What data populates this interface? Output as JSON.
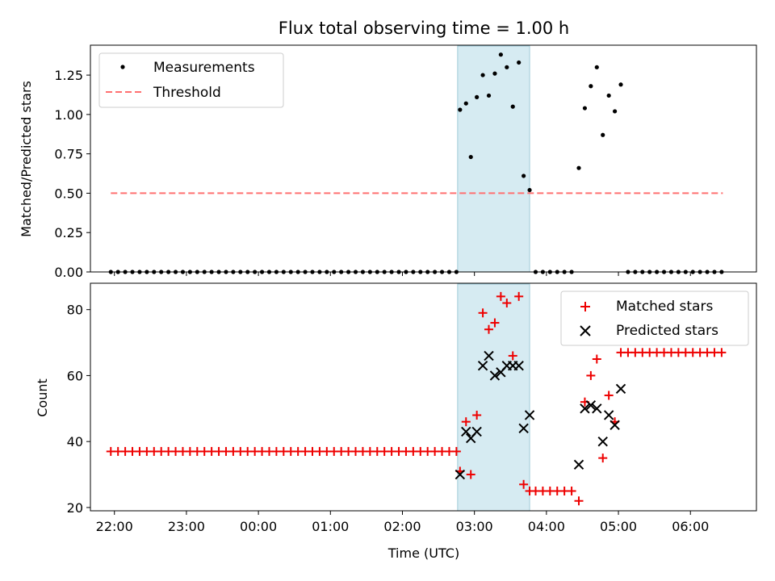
{
  "title": "Flux total observing time = 1.00 h",
  "colors": {
    "measurement": "#000000",
    "threshold": "#ff7070",
    "matched": "#ee0000",
    "predicted": "#000000",
    "highlight": "#add8e6"
  },
  "chart_data": [
    {
      "type": "scatter",
      "ylabel": "Matched/Predicted stars",
      "ylim": [
        0,
        1.44
      ],
      "yticks": [
        0,
        0.25,
        0.5,
        0.75,
        1.0,
        1.25
      ],
      "ytick_labels": [
        "0.00",
        "0.25",
        "0.50",
        "0.75",
        "1.00",
        "1.25"
      ],
      "legend_position": "top-left",
      "highlight_span": [
        "02:46",
        "03:46"
      ],
      "series": [
        {
          "name": "Measurements",
          "marker": "dot",
          "points": [
            [
              "21:57",
              0
            ],
            [
              "22:03",
              0
            ],
            [
              "22:09",
              0
            ],
            [
              "22:15",
              0
            ],
            [
              "22:21",
              0
            ],
            [
              "22:27",
              0
            ],
            [
              "22:33",
              0
            ],
            [
              "22:39",
              0
            ],
            [
              "22:45",
              0
            ],
            [
              "22:51",
              0
            ],
            [
              "22:57",
              0
            ],
            [
              "23:03",
              0
            ],
            [
              "23:09",
              0
            ],
            [
              "23:15",
              0
            ],
            [
              "23:21",
              0
            ],
            [
              "23:27",
              0
            ],
            [
              "23:33",
              0
            ],
            [
              "23:39",
              0
            ],
            [
              "23:45",
              0
            ],
            [
              "23:51",
              0
            ],
            [
              "23:57",
              0
            ],
            [
              "00:03",
              0
            ],
            [
              "00:09",
              0
            ],
            [
              "00:15",
              0
            ],
            [
              "00:21",
              0
            ],
            [
              "00:27",
              0
            ],
            [
              "00:33",
              0
            ],
            [
              "00:39",
              0
            ],
            [
              "00:45",
              0
            ],
            [
              "00:51",
              0
            ],
            [
              "00:57",
              0
            ],
            [
              "01:03",
              0
            ],
            [
              "01:09",
              0
            ],
            [
              "01:15",
              0
            ],
            [
              "01:21",
              0
            ],
            [
              "01:27",
              0
            ],
            [
              "01:33",
              0
            ],
            [
              "01:39",
              0
            ],
            [
              "01:45",
              0
            ],
            [
              "01:51",
              0
            ],
            [
              "01:57",
              0
            ],
            [
              "02:03",
              0
            ],
            [
              "02:09",
              0
            ],
            [
              "02:15",
              0
            ],
            [
              "02:21",
              0
            ],
            [
              "02:27",
              0
            ],
            [
              "02:33",
              0
            ],
            [
              "02:39",
              0
            ],
            [
              "02:45",
              0
            ],
            [
              "02:48",
              1.03
            ],
            [
              "02:53",
              1.07
            ],
            [
              "02:57",
              0.73
            ],
            [
              "03:02",
              1.11
            ],
            [
              "03:07",
              1.25
            ],
            [
              "03:12",
              1.12
            ],
            [
              "03:17",
              1.26
            ],
            [
              "03:22",
              1.38
            ],
            [
              "03:27",
              1.3
            ],
            [
              "03:32",
              1.05
            ],
            [
              "03:37",
              1.33
            ],
            [
              "03:41",
              0.61
            ],
            [
              "03:46",
              0.52
            ],
            [
              "03:51",
              0
            ],
            [
              "03:57",
              0
            ],
            [
              "04:03",
              0
            ],
            [
              "04:09",
              0
            ],
            [
              "04:15",
              0
            ],
            [
              "04:21",
              0
            ],
            [
              "04:27",
              0.66
            ],
            [
              "04:32",
              1.04
            ],
            [
              "04:37",
              1.18
            ],
            [
              "04:42",
              1.3
            ],
            [
              "04:47",
              0.87
            ],
            [
              "04:52",
              1.12
            ],
            [
              "04:57",
              1.02
            ],
            [
              "05:02",
              1.19
            ],
            [
              "05:08",
              0
            ],
            [
              "05:14",
              0
            ],
            [
              "05:20",
              0
            ],
            [
              "05:26",
              0
            ],
            [
              "05:32",
              0
            ],
            [
              "05:38",
              0
            ],
            [
              "05:44",
              0
            ],
            [
              "05:50",
              0
            ],
            [
              "05:56",
              0
            ],
            [
              "06:02",
              0
            ],
            [
              "06:08",
              0
            ],
            [
              "06:14",
              0
            ],
            [
              "06:20",
              0
            ],
            [
              "06:26",
              0
            ]
          ]
        },
        {
          "name": "Threshold",
          "style": "dashed",
          "points": [
            [
              "21:57",
              0.5
            ],
            [
              "06:27",
              0.5
            ]
          ]
        }
      ]
    },
    {
      "type": "scatter",
      "xlabel": "Time (UTC)",
      "ylabel": "Count",
      "ylim": [
        19,
        88
      ],
      "yticks": [
        20,
        40,
        60,
        80
      ],
      "ytick_labels": [
        "20",
        "40",
        "60",
        "80"
      ],
      "x_range": [
        "21:40",
        "06:55"
      ],
      "xticks": [
        "22:00",
        "23:00",
        "00:00",
        "01:00",
        "02:00",
        "03:00",
        "04:00",
        "05:00",
        "06:00"
      ],
      "legend_position": "top-right",
      "highlight_span": [
        "02:46",
        "03:46"
      ],
      "series": [
        {
          "name": "Matched stars",
          "marker": "plus",
          "points": [
            [
              "21:57",
              37
            ],
            [
              "22:03",
              37
            ],
            [
              "22:09",
              37
            ],
            [
              "22:15",
              37
            ],
            [
              "22:21",
              37
            ],
            [
              "22:27",
              37
            ],
            [
              "22:33",
              37
            ],
            [
              "22:39",
              37
            ],
            [
              "22:45",
              37
            ],
            [
              "22:51",
              37
            ],
            [
              "22:57",
              37
            ],
            [
              "23:03",
              37
            ],
            [
              "23:09",
              37
            ],
            [
              "23:15",
              37
            ],
            [
              "23:21",
              37
            ],
            [
              "23:27",
              37
            ],
            [
              "23:33",
              37
            ],
            [
              "23:39",
              37
            ],
            [
              "23:45",
              37
            ],
            [
              "23:51",
              37
            ],
            [
              "23:57",
              37
            ],
            [
              "00:03",
              37
            ],
            [
              "00:09",
              37
            ],
            [
              "00:15",
              37
            ],
            [
              "00:21",
              37
            ],
            [
              "00:27",
              37
            ],
            [
              "00:33",
              37
            ],
            [
              "00:39",
              37
            ],
            [
              "00:45",
              37
            ],
            [
              "00:51",
              37
            ],
            [
              "00:57",
              37
            ],
            [
              "01:03",
              37
            ],
            [
              "01:09",
              37
            ],
            [
              "01:15",
              37
            ],
            [
              "01:21",
              37
            ],
            [
              "01:27",
              37
            ],
            [
              "01:33",
              37
            ],
            [
              "01:39",
              37
            ],
            [
              "01:45",
              37
            ],
            [
              "01:51",
              37
            ],
            [
              "01:57",
              37
            ],
            [
              "02:03",
              37
            ],
            [
              "02:09",
              37
            ],
            [
              "02:15",
              37
            ],
            [
              "02:21",
              37
            ],
            [
              "02:27",
              37
            ],
            [
              "02:33",
              37
            ],
            [
              "02:39",
              37
            ],
            [
              "02:45",
              37
            ],
            [
              "02:48",
              31
            ],
            [
              "02:53",
              46
            ],
            [
              "02:57",
              30
            ],
            [
              "03:02",
              48
            ],
            [
              "03:07",
              79
            ],
            [
              "03:12",
              74
            ],
            [
              "03:17",
              76
            ],
            [
              "03:22",
              84
            ],
            [
              "03:27",
              82
            ],
            [
              "03:32",
              66
            ],
            [
              "03:37",
              84
            ],
            [
              "03:41",
              27
            ],
            [
              "03:46",
              25
            ],
            [
              "03:51",
              25
            ],
            [
              "03:57",
              25
            ],
            [
              "04:03",
              25
            ],
            [
              "04:09",
              25
            ],
            [
              "04:15",
              25
            ],
            [
              "04:21",
              25
            ],
            [
              "04:27",
              22
            ],
            [
              "04:32",
              52
            ],
            [
              "04:37",
              60
            ],
            [
              "04:42",
              65
            ],
            [
              "04:47",
              35
            ],
            [
              "04:52",
              54
            ],
            [
              "04:57",
              46
            ],
            [
              "05:02",
              67
            ],
            [
              "05:08",
              67
            ],
            [
              "05:14",
              67
            ],
            [
              "05:20",
              67
            ],
            [
              "05:26",
              67
            ],
            [
              "05:32",
              67
            ],
            [
              "05:38",
              67
            ],
            [
              "05:44",
              67
            ],
            [
              "05:50",
              67
            ],
            [
              "05:56",
              67
            ],
            [
              "06:02",
              67
            ],
            [
              "06:08",
              67
            ],
            [
              "06:14",
              67
            ],
            [
              "06:20",
              67
            ],
            [
              "06:26",
              67
            ]
          ]
        },
        {
          "name": "Predicted stars",
          "marker": "x",
          "points": [
            [
              "02:48",
              30
            ],
            [
              "02:53",
              43
            ],
            [
              "02:57",
              41
            ],
            [
              "03:02",
              43
            ],
            [
              "03:07",
              63
            ],
            [
              "03:12",
              66
            ],
            [
              "03:17",
              60
            ],
            [
              "03:22",
              61
            ],
            [
              "03:27",
              63
            ],
            [
              "03:32",
              63
            ],
            [
              "03:37",
              63
            ],
            [
              "03:41",
              44
            ],
            [
              "03:46",
              48
            ],
            [
              "04:27",
              33
            ],
            [
              "04:32",
              50
            ],
            [
              "04:37",
              51
            ],
            [
              "04:42",
              50
            ],
            [
              "04:47",
              40
            ],
            [
              "04:52",
              48
            ],
            [
              "04:57",
              45
            ],
            [
              "05:02",
              56
            ]
          ]
        }
      ]
    }
  ]
}
